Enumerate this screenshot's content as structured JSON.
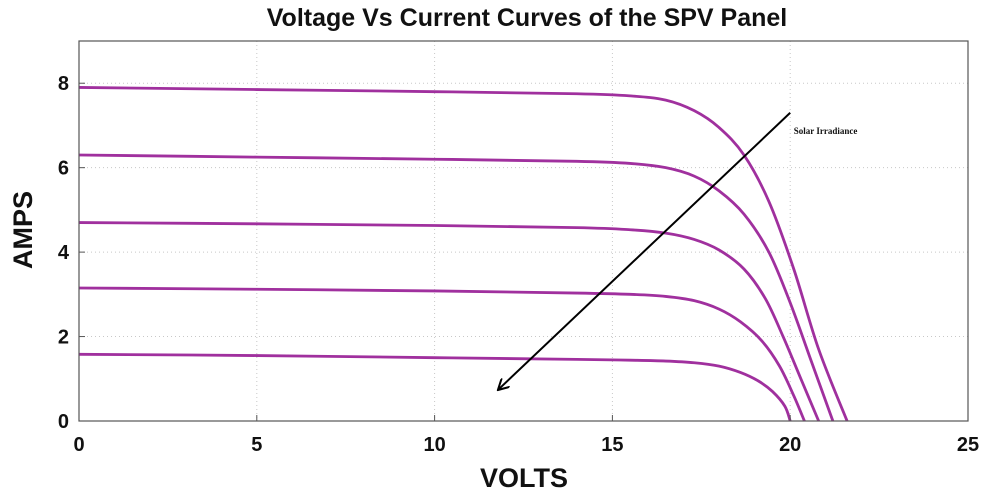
{
  "chart_data": {
    "type": "line",
    "title": "Voltage Vs Current Curves of the SPV Panel",
    "xlabel": "VOLTS",
    "ylabel": "AMPS",
    "xlim": [
      0,
      25
    ],
    "ylim": [
      0,
      9
    ],
    "xticks": [
      0,
      5,
      10,
      15,
      20,
      25
    ],
    "yticks": [
      0,
      2,
      4,
      6,
      8
    ],
    "grid": true,
    "line_color": "#a0309e",
    "series": [
      {
        "x": [
          0,
          5,
          10,
          14,
          15.5,
          16.5,
          17.3,
          18,
          18.7,
          19.4,
          20.1,
          20.8,
          21.6
        ],
        "y": [
          7.9,
          7.85,
          7.8,
          7.75,
          7.7,
          7.6,
          7.35,
          6.95,
          6.3,
          5.2,
          3.6,
          1.7,
          0
        ]
      },
      {
        "x": [
          0,
          5,
          10,
          14,
          15.5,
          16.5,
          17.3,
          18,
          18.7,
          19.4,
          20.0,
          20.6,
          21.2
        ],
        "y": [
          6.3,
          6.25,
          6.2,
          6.15,
          6.1,
          6.0,
          5.8,
          5.45,
          4.9,
          4.0,
          2.8,
          1.4,
          0
        ]
      },
      {
        "x": [
          0,
          5,
          10,
          14,
          15.5,
          16.5,
          17.3,
          18,
          18.7,
          19.3,
          19.8,
          20.3,
          20.8
        ],
        "y": [
          4.7,
          4.67,
          4.63,
          4.58,
          4.53,
          4.45,
          4.3,
          4.05,
          3.6,
          2.9,
          2.0,
          1.0,
          0
        ]
      },
      {
        "x": [
          0,
          5,
          10,
          14,
          15.5,
          16.5,
          17.3,
          18,
          18.6,
          19.2,
          19.7,
          20.1,
          20.4
        ],
        "y": [
          3.15,
          3.12,
          3.08,
          3.03,
          3.0,
          2.95,
          2.85,
          2.65,
          2.35,
          1.9,
          1.3,
          0.6,
          0
        ]
      },
      {
        "x": [
          0,
          5,
          10,
          14,
          15.5,
          16.5,
          17.3,
          18,
          18.6,
          19.1,
          19.5,
          19.85,
          20.0
        ],
        "y": [
          1.58,
          1.55,
          1.5,
          1.46,
          1.44,
          1.42,
          1.38,
          1.3,
          1.15,
          0.95,
          0.7,
          0.35,
          0
        ]
      }
    ],
    "annotations": [
      {
        "text": "Solar Irradiance",
        "x": 20.1,
        "y": 6.8,
        "arrow_from": [
          20.0,
          7.3
        ],
        "arrow_to": [
          11.8,
          0.75
        ]
      }
    ]
  }
}
